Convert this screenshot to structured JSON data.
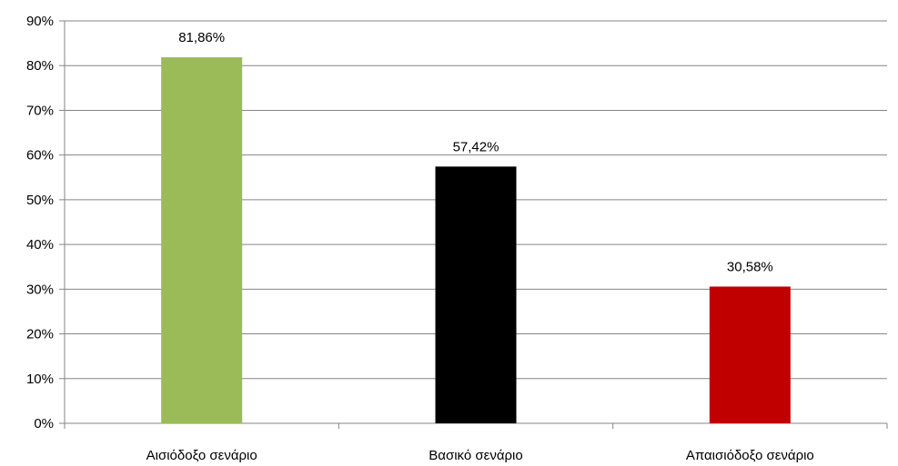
{
  "chart_data": {
    "type": "bar",
    "title": "",
    "xlabel": "",
    "ylabel": "",
    "categories": [
      "Αισιόδοξο σενάριο",
      "Βασικό σενάριο",
      "Απαισιόδοξο σενάριο"
    ],
    "values": [
      81.86,
      57.42,
      30.58
    ],
    "data_labels": [
      "81,86%",
      "57,42%",
      "30,58%"
    ],
    "colors": [
      "#9BBB59",
      "#000000",
      "#C00000"
    ],
    "ylim": [
      0,
      90
    ],
    "yticks": [
      0,
      10,
      20,
      30,
      40,
      50,
      60,
      70,
      80,
      90
    ],
    "ytick_labels": [
      "0%",
      "10%",
      "20%",
      "30%",
      "40%",
      "50%",
      "60%",
      "70%",
      "80%",
      "90%"
    ],
    "grid": true,
    "legend": "none"
  }
}
